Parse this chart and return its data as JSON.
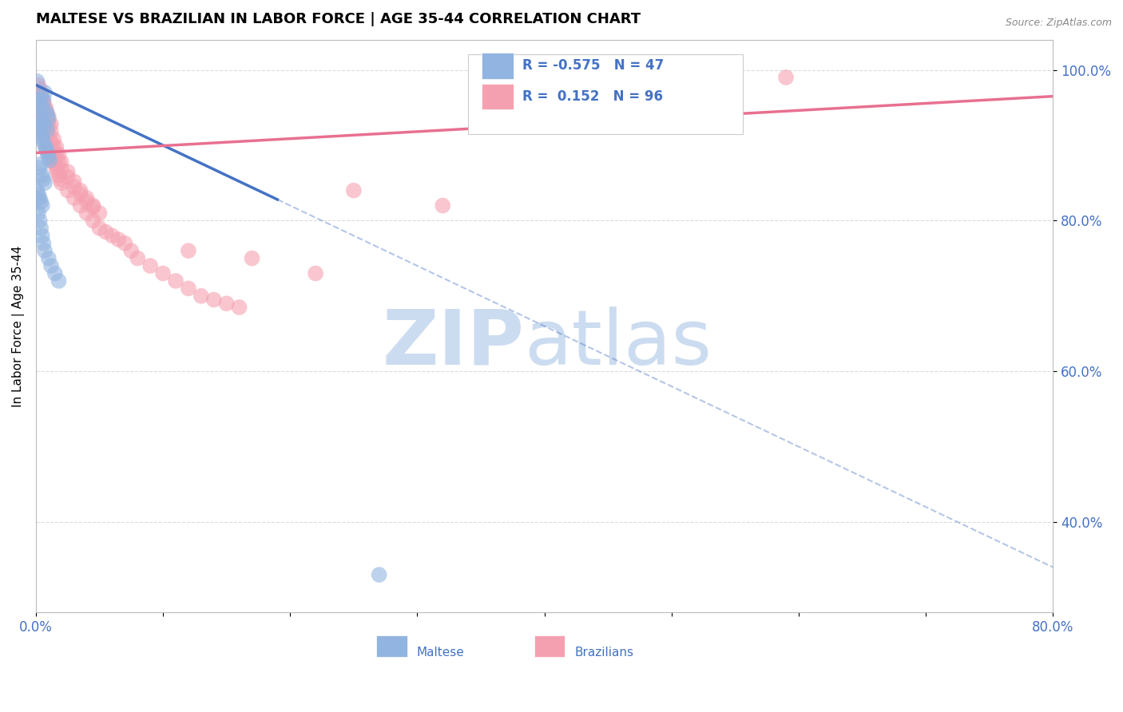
{
  "title": "MALTESE VS BRAZILIAN IN LABOR FORCE | AGE 35-44 CORRELATION CHART",
  "source_text": "Source: ZipAtlas.com",
  "ylabel": "In Labor Force | Age 35-44",
  "xlim": [
    0.0,
    0.8
  ],
  "ylim": [
    0.28,
    1.04
  ],
  "xticks": [
    0.0,
    0.1,
    0.2,
    0.3,
    0.4,
    0.5,
    0.6,
    0.7,
    0.8
  ],
  "xticklabels": [
    "0.0%",
    "",
    "",
    "",
    "",
    "",
    "",
    "",
    "80.0%"
  ],
  "yticks": [
    0.4,
    0.6,
    0.8,
    1.0
  ],
  "yticklabels": [
    "40.0%",
    "60.0%",
    "80.0%",
    "100.0%"
  ],
  "maltese_R": -0.575,
  "maltese_N": 47,
  "brazilian_R": 0.152,
  "brazilian_N": 96,
  "maltese_color": "#92b4e0",
  "brazilian_color": "#f5a0b0",
  "maltese_line_color": "#4472c4",
  "brazilian_line_color": "#e87090",
  "watermark_color": "#ccdcf0",
  "legend_color": "#4472c4",
  "grid_color": "#cccccc",
  "fig_bg": "#ffffff",
  "title_fontsize": 13,
  "axis_label_fontsize": 11,
  "tick_label_color": "#4472c4",
  "maltese_scatter_x": [
    0.001,
    0.002,
    0.003,
    0.004,
    0.005,
    0.006,
    0.007,
    0.008,
    0.009,
    0.01,
    0.002,
    0.003,
    0.004,
    0.005,
    0.006,
    0.007,
    0.008,
    0.009,
    0.01,
    0.011,
    0.003,
    0.004,
    0.005,
    0.006,
    0.007,
    0.001,
    0.002,
    0.003,
    0.004,
    0.005,
    0.002,
    0.003,
    0.004,
    0.005,
    0.006,
    0.007,
    0.01,
    0.012,
    0.015,
    0.018,
    0.001,
    0.003,
    0.005,
    0.007,
    0.009,
    0.27,
    0.008
  ],
  "maltese_scatter_y": [
    0.985,
    0.96,
    0.955,
    0.965,
    0.95,
    0.96,
    0.97,
    0.945,
    0.94,
    0.935,
    0.92,
    0.925,
    0.915,
    0.91,
    0.905,
    0.9,
    0.895,
    0.89,
    0.885,
    0.88,
    0.87,
    0.875,
    0.86,
    0.855,
    0.85,
    0.84,
    0.835,
    0.83,
    0.825,
    0.82,
    0.81,
    0.8,
    0.79,
    0.78,
    0.77,
    0.76,
    0.75,
    0.74,
    0.73,
    0.72,
    0.94,
    0.935,
    0.93,
    0.925,
    0.92,
    0.33,
    0.895
  ],
  "brazilian_scatter_x": [
    0.001,
    0.002,
    0.003,
    0.004,
    0.005,
    0.006,
    0.007,
    0.008,
    0.009,
    0.01,
    0.011,
    0.012,
    0.013,
    0.014,
    0.015,
    0.016,
    0.017,
    0.018,
    0.019,
    0.02,
    0.025,
    0.03,
    0.035,
    0.04,
    0.045,
    0.05,
    0.055,
    0.06,
    0.065,
    0.07,
    0.075,
    0.08,
    0.09,
    0.1,
    0.11,
    0.12,
    0.13,
    0.14,
    0.15,
    0.16,
    0.002,
    0.003,
    0.004,
    0.005,
    0.006,
    0.007,
    0.008,
    0.009,
    0.01,
    0.012,
    0.014,
    0.016,
    0.018,
    0.02,
    0.025,
    0.03,
    0.035,
    0.04,
    0.045,
    0.05,
    0.002,
    0.003,
    0.004,
    0.005,
    0.006,
    0.007,
    0.008,
    0.009,
    0.01,
    0.012,
    0.014,
    0.016,
    0.018,
    0.02,
    0.025,
    0.03,
    0.035,
    0.04,
    0.045,
    0.002,
    0.003,
    0.004,
    0.005,
    0.006,
    0.007,
    0.008,
    0.009,
    0.01,
    0.012,
    0.22,
    0.17,
    0.12,
    0.59,
    0.32,
    0.25
  ],
  "brazilian_scatter_y": [
    0.945,
    0.94,
    0.935,
    0.93,
    0.925,
    0.92,
    0.915,
    0.91,
    0.905,
    0.9,
    0.895,
    0.89,
    0.885,
    0.88,
    0.875,
    0.87,
    0.865,
    0.86,
    0.855,
    0.85,
    0.84,
    0.83,
    0.82,
    0.81,
    0.8,
    0.79,
    0.785,
    0.78,
    0.775,
    0.77,
    0.76,
    0.75,
    0.74,
    0.73,
    0.72,
    0.71,
    0.7,
    0.695,
    0.69,
    0.685,
    0.96,
    0.955,
    0.95,
    0.945,
    0.94,
    0.935,
    0.928,
    0.922,
    0.915,
    0.905,
    0.898,
    0.888,
    0.878,
    0.868,
    0.858,
    0.845,
    0.835,
    0.825,
    0.818,
    0.81,
    0.97,
    0.965,
    0.958,
    0.952,
    0.948,
    0.942,
    0.938,
    0.932,
    0.928,
    0.918,
    0.908,
    0.898,
    0.888,
    0.878,
    0.865,
    0.852,
    0.84,
    0.83,
    0.82,
    0.98,
    0.975,
    0.968,
    0.962,
    0.958,
    0.952,
    0.948,
    0.942,
    0.938,
    0.928,
    0.73,
    0.75,
    0.76,
    0.99,
    0.82,
    0.84
  ],
  "maltese_trend_x": [
    0.0,
    0.8
  ],
  "maltese_trend_y": [
    0.98,
    0.34
  ],
  "maltese_trend_solid_end": 0.19,
  "maltese_trend_dashed_start": 0.19,
  "brazilian_trend_x": [
    0.0,
    0.8
  ],
  "brazilian_trend_y": [
    0.89,
    0.965
  ]
}
